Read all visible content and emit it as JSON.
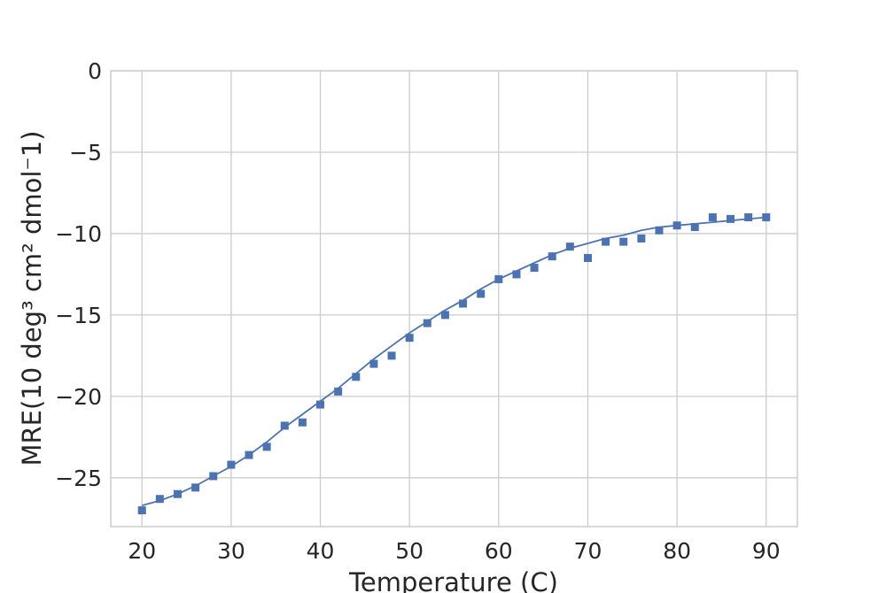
{
  "chart_data": {
    "type": "scatter",
    "title": "",
    "xlabel": "Temperature (C)",
    "ylabel": "MRE(10 deg³ cm² dmol⁻1)",
    "xlim": [
      16.5,
      93.5
    ],
    "ylim": [
      -28,
      0
    ],
    "xticks": [
      "20",
      "30",
      "40",
      "50",
      "60",
      "70",
      "80",
      "90"
    ],
    "yticks": [
      "0",
      "−5",
      "−10",
      "−15",
      "−20",
      "−25"
    ],
    "grid": true,
    "legend": "none",
    "series": [
      {
        "kind": "points",
        "color": "#4c72b0",
        "x": [
          20,
          22,
          24,
          26,
          28,
          30,
          32,
          34,
          36,
          38,
          40,
          42,
          44,
          46,
          48,
          50,
          52,
          54,
          56,
          58,
          60,
          62,
          64,
          66,
          68,
          70,
          72,
          74,
          76,
          78,
          80,
          82,
          84,
          86,
          88,
          90
        ],
        "y": [
          -27.0,
          -26.3,
          -26.0,
          -25.6,
          -24.9,
          -24.2,
          -23.6,
          -23.1,
          -21.8,
          -21.6,
          -20.5,
          -19.7,
          -18.8,
          -18.0,
          -17.5,
          -16.4,
          -15.5,
          -15.0,
          -14.3,
          -13.7,
          -12.8,
          -12.5,
          -12.1,
          -11.4,
          -10.8,
          -11.5,
          -10.5,
          -10.5,
          -10.3,
          -9.8,
          -9.5,
          -9.6,
          -9.0,
          -9.1,
          -9.0,
          -9.0
        ]
      },
      {
        "kind": "fit",
        "color": "#4c72b0",
        "x": [
          20,
          22,
          24,
          26,
          28,
          30,
          32,
          34,
          36,
          38,
          40,
          42,
          44,
          46,
          48,
          50,
          52,
          54,
          56,
          58,
          60,
          62,
          64,
          66,
          68,
          70,
          72,
          74,
          76,
          78,
          80,
          82,
          84,
          86,
          88,
          90
        ],
        "y": [
          -26.7,
          -26.4,
          -26.0,
          -25.5,
          -24.9,
          -24.3,
          -23.6,
          -22.8,
          -21.9,
          -21.1,
          -20.3,
          -19.5,
          -18.6,
          -17.7,
          -16.9,
          -16.1,
          -15.4,
          -14.7,
          -14.1,
          -13.4,
          -12.8,
          -12.3,
          -11.8,
          -11.3,
          -10.9,
          -10.6,
          -10.3,
          -10.1,
          -9.8,
          -9.6,
          -9.5,
          -9.4,
          -9.3,
          -9.2,
          -9.1,
          -9.0
        ]
      }
    ]
  }
}
